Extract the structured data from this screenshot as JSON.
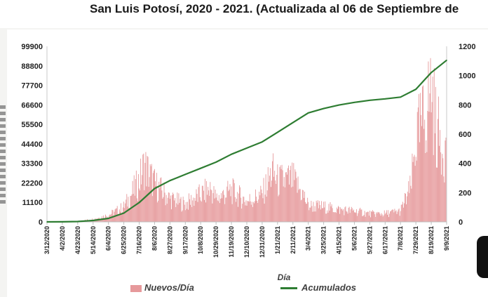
{
  "header": {
    "title": "San Luis Potosí, 2020 - 2021. (Actualizada al 06 de Septiembre de"
  },
  "chart_data": {
    "type": "bar",
    "xlabel": "Día",
    "ylabel": "",
    "ylabel_right": "",
    "y_left_ticks": [
      "0",
      "11100",
      "22200",
      "33300",
      "44400",
      "55500",
      "66600",
      "77700",
      "88800",
      "99900"
    ],
    "y_right_ticks": [
      "0",
      "200",
      "400",
      "600",
      "800",
      "1000",
      "1200"
    ],
    "ylim_left": [
      0,
      99900
    ],
    "ylim_right": [
      0,
      1200
    ],
    "x_tick_labels": [
      "3/12/2020",
      "4/2/2020",
      "4/23/2020",
      "5/14/2020",
      "6/4/2020",
      "6/25/2020",
      "7/16/2020",
      "8/6/2020",
      "8/27/2020",
      "9/17/2020",
      "10/8/2020",
      "10/29/2020",
      "11/19/2020",
      "12/10/2020",
      "12/31/2020",
      "1/21/2021",
      "2/11/2021",
      "3/4/2021",
      "3/25/2021",
      "4/15/2021",
      "5/6/2021",
      "5/27/2021",
      "6/17/2021",
      "7/8/2021",
      "7/29/2021",
      "8/19/2021",
      "9/9/2021"
    ],
    "legend": [
      "Nuevos/Día",
      "Acumulados"
    ],
    "legend_position": "bottom",
    "grid": false,
    "series": [
      {
        "name": "Nuevos/Día",
        "axis": "right",
        "style": "bar",
        "color": "#e6999b",
        "x": [
          "3/12/2020",
          "4/2/2020",
          "4/23/2020",
          "5/14/2020",
          "6/4/2020",
          "6/25/2020",
          "7/16/2020",
          "7/23/2020",
          "8/6/2020",
          "8/27/2020",
          "9/17/2020",
          "10/8/2020",
          "10/22/2020",
          "10/29/2020",
          "11/19/2020",
          "12/10/2020",
          "12/31/2020",
          "1/14/2021",
          "1/21/2021",
          "2/11/2021",
          "2/25/2021",
          "3/4/2021",
          "3/25/2021",
          "4/15/2021",
          "5/6/2021",
          "5/27/2021",
          "6/17/2021",
          "7/8/2021",
          "7/22/2021",
          "7/29/2021",
          "8/12/2021",
          "8/19/2021",
          "8/26/2021",
          "9/9/2021"
        ],
        "values": [
          0,
          2,
          5,
          20,
          50,
          110,
          300,
          420,
          280,
          170,
          130,
          200,
          245,
          170,
          230,
          150,
          200,
          370,
          300,
          310,
          200,
          120,
          110,
          90,
          80,
          60,
          60,
          80,
          250,
          600,
          800,
          1000,
          680,
          500
        ]
      },
      {
        "name": "Acumulados",
        "axis": "left",
        "style": "line",
        "color": "#2e7d32",
        "x": [
          "3/12/2020",
          "4/2/2020",
          "4/23/2020",
          "5/14/2020",
          "6/4/2020",
          "6/25/2020",
          "7/16/2020",
          "8/6/2020",
          "8/27/2020",
          "9/17/2020",
          "10/8/2020",
          "10/29/2020",
          "11/19/2020",
          "12/10/2020",
          "12/31/2020",
          "1/21/2021",
          "2/11/2021",
          "3/4/2021",
          "3/25/2021",
          "4/15/2021",
          "5/6/2021",
          "5/27/2021",
          "6/17/2021",
          "7/8/2021",
          "7/29/2021",
          "8/19/2021",
          "9/9/2021"
        ],
        "values": [
          0,
          50,
          200,
          800,
          2000,
          5000,
          11000,
          19000,
          23500,
          27000,
          30500,
          34000,
          38500,
          42000,
          45500,
          51000,
          56500,
          62000,
          64500,
          66500,
          68000,
          69200,
          70000,
          71000,
          75500,
          85000,
          92000
        ]
      }
    ]
  }
}
